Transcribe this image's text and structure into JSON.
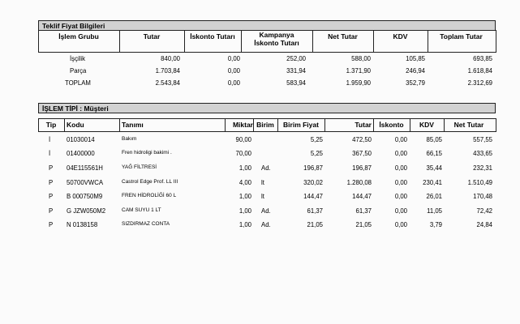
{
  "section1": {
    "title": "Teklif Fiyat Bilgileri",
    "headers": [
      "İşlem Grubu",
      "Tutar",
      "İskonto Tutarı",
      "Kampanya İskonto Tutarı",
      "Net Tutar",
      "KDV",
      "Toplam Tutar"
    ],
    "header_kampanya_line1": "Kampanya",
    "header_kampanya_line2": "İskonto Tutarı",
    "rows": [
      {
        "group": "İşçilik",
        "tutar": "840,00",
        "iskonto": "0,00",
        "kampanya": "252,00",
        "net": "588,00",
        "kdv": "105,85",
        "toplam": "693,85"
      },
      {
        "group": "Parça",
        "tutar": "1.703,84",
        "iskonto": "0,00",
        "kampanya": "331,94",
        "net": "1.371,90",
        "kdv": "246,94",
        "toplam": "1.618,84"
      },
      {
        "group": "TOPLAM",
        "tutar": "2.543,84",
        "iskonto": "0,00",
        "kampanya": "583,94",
        "net": "1.959,90",
        "kdv": "352,79",
        "toplam": "2.312,69"
      }
    ]
  },
  "section2": {
    "title": "İŞLEM TİPİ : Müşteri",
    "headers": [
      "Tip",
      "Kodu",
      "Tanımı",
      "Miktar",
      "Birim",
      "Birim Fiyat",
      "Tutar",
      "İskonto",
      "KDV",
      "Net Tutar"
    ],
    "rows": [
      {
        "tip": "İ",
        "kod": "01030014",
        "tanim": "Bakım",
        "miktar": "90,00",
        "birim": "",
        "birim_fiyat": "5,25",
        "tutar": "472,50",
        "iskonto": "0,00",
        "kdv": "85,05",
        "net": "557,55"
      },
      {
        "tip": "İ",
        "kod": "01400000",
        "tanim": "Fren hidroligi bakimi .",
        "miktar": "70,00",
        "birim": "",
        "birim_fiyat": "5,25",
        "tutar": "367,50",
        "iskonto": "0,00",
        "kdv": "66,15",
        "net": "433,65"
      },
      {
        "tip": "P",
        "kod": "04E115561H",
        "tanim": "YAĞ FİLTRESİ",
        "miktar": "1,00",
        "birim": "Ad.",
        "birim_fiyat": "196,87",
        "tutar": "196,87",
        "iskonto": "0,00",
        "kdv": "35,44",
        "net": "232,31"
      },
      {
        "tip": "P",
        "kod": "50700VWCA",
        "tanim": "Castrol Edge Prof. LL III",
        "miktar": "4,00",
        "birim": "lt",
        "birim_fiyat": "320,02",
        "tutar": "1.280,08",
        "iskonto": "0,00",
        "kdv": "230,41",
        "net": "1.510,49"
      },
      {
        "tip": "P",
        "kod": "B  000750M9",
        "tanim": "FREN HİDROLİĞİ 60 L",
        "miktar": "1,00",
        "birim": "lt",
        "birim_fiyat": "144,47",
        "tutar": "144,47",
        "iskonto": "0,00",
        "kdv": "26,01",
        "net": "170,48"
      },
      {
        "tip": "P",
        "kod": "G  JZW050M2",
        "tanim": "CAM SUYU 1 LT",
        "miktar": "1,00",
        "birim": "Ad.",
        "birim_fiyat": "61,37",
        "tutar": "61,37",
        "iskonto": "0,00",
        "kdv": "11,05",
        "net": "72,42"
      },
      {
        "tip": "P",
        "kod": "N  0138158",
        "tanim": "SIZDIRMAZ CONTA",
        "miktar": "1,00",
        "birim": "Ad.",
        "birim_fiyat": "21,05",
        "tutar": "21,05",
        "iskonto": "0,00",
        "kdv": "3,79",
        "net": "24,84"
      }
    ]
  }
}
